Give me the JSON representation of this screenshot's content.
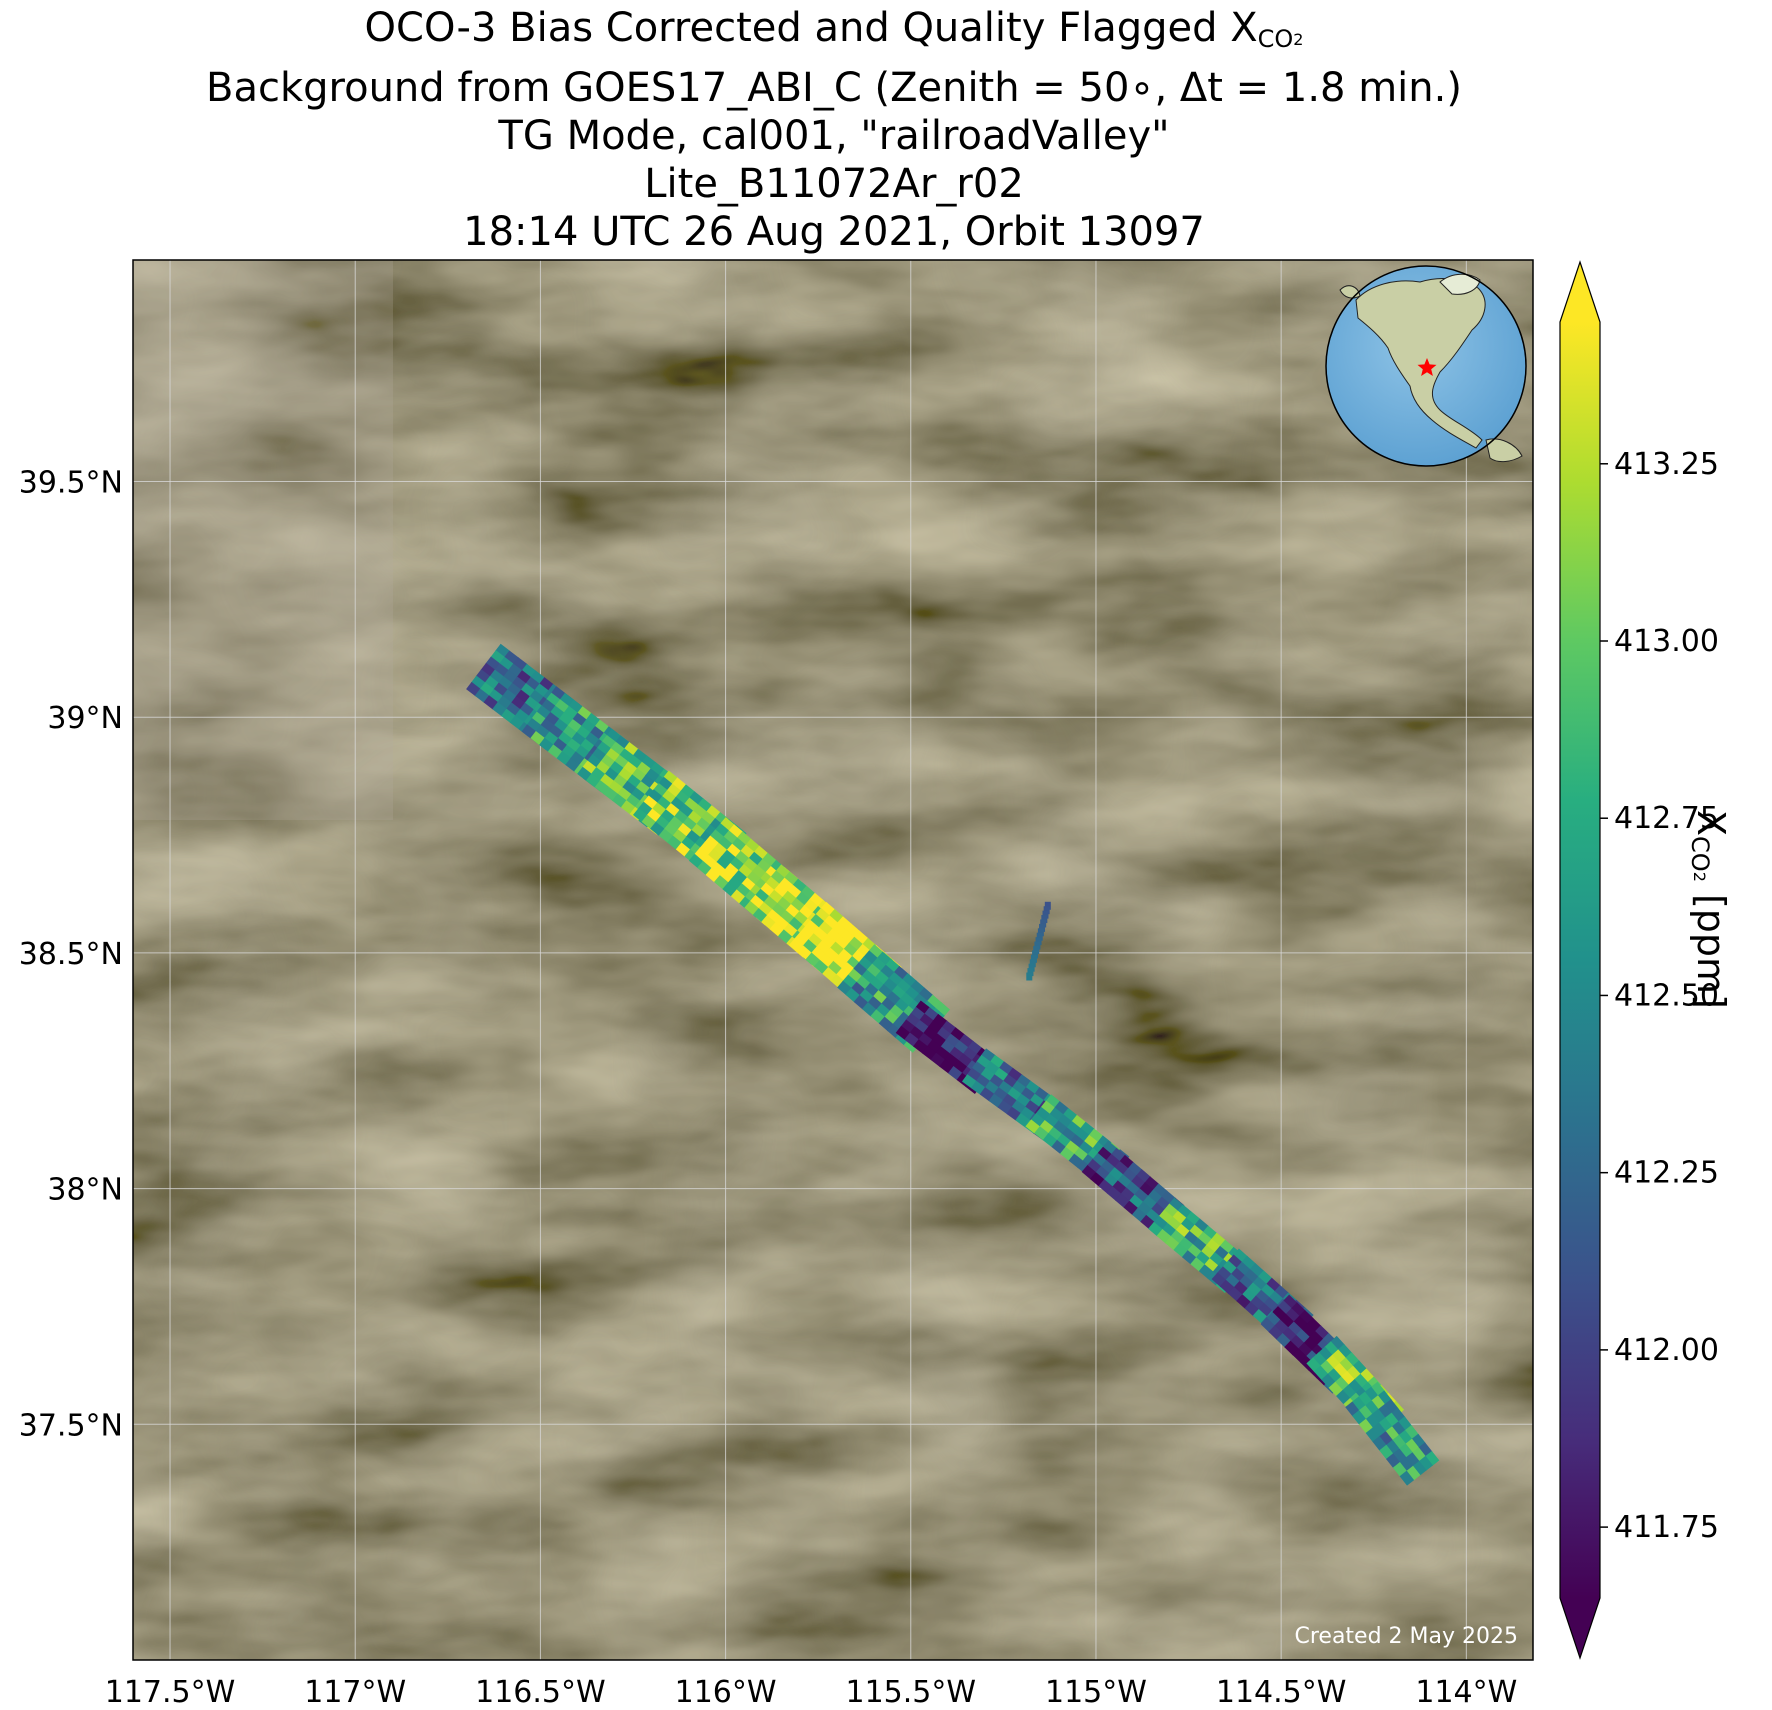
{
  "title": {
    "line1_prefix": "OCO-3 Bias Corrected and Quality Flagged X",
    "line1_sub": "CO",
    "line1_subsub": "2",
    "line2": "Background from GOES17_ABI_C (Zenith = 50∘, Δt =  1.8 min.)",
    "line3": "TG Mode, cal001, \"railroadValley\"",
    "line4": "Lite_B11072Ar_r02",
    "line5": "18:14 UTC 26 Aug 2021, Orbit 13097"
  },
  "credit": "Created 2 May 2025",
  "colorbar": {
    "label_prefix": "X",
    "label_sub": "CO",
    "label_subsub": "2",
    "label_suffix": " [ppm]",
    "colormap": "viridis",
    "vmin": 411.65,
    "vmax": 413.45,
    "extend": "both",
    "ticks": [
      413.25,
      413.0,
      412.75,
      412.5,
      412.25,
      412.0,
      411.75
    ],
    "tick_labels": [
      "413.25",
      "413.00",
      "412.75",
      "412.50",
      "412.25",
      "412.00",
      "411.75"
    ]
  },
  "inset_globe": {
    "description": "",
    "marker_color": "#ff0000"
  },
  "chart_data": {
    "type": "heatmap",
    "map_extent": {
      "lon": [
        -117.6,
        -113.82
      ],
      "lat": [
        37.0,
        39.97
      ]
    },
    "grid": true,
    "x_ticks": [
      -117.5,
      -117.0,
      -116.5,
      -116.0,
      -115.5,
      -115.0,
      -114.5,
      -114.0
    ],
    "x_tick_labels": [
      "117.5°W",
      "117°W",
      "116.5°W",
      "116°W",
      "115.5°W",
      "115°W",
      "114.5°W",
      "114°W"
    ],
    "y_ticks": [
      39.5,
      39.0,
      38.5,
      38.0,
      37.5
    ],
    "y_tick_labels": [
      "39.5°N",
      "39°N",
      "38.5°N",
      "38°N",
      "37.5°N"
    ],
    "swath_segments": [
      {
        "lon": -116.55,
        "lat": 39.04,
        "value": 412.3
      },
      {
        "lon": -116.4,
        "lat": 38.95,
        "value": 412.6
      },
      {
        "lon": -116.25,
        "lat": 38.86,
        "value": 412.9
      },
      {
        "lon": -116.1,
        "lat": 38.77,
        "value": 413.0
      },
      {
        "lon": -115.95,
        "lat": 38.67,
        "value": 413.2
      },
      {
        "lon": -115.8,
        "lat": 38.57,
        "value": 413.3
      },
      {
        "lon": -115.68,
        "lat": 38.49,
        "value": 413.4
      },
      {
        "lon": -115.55,
        "lat": 38.4,
        "value": 412.6
      },
      {
        "lon": -115.4,
        "lat": 38.3,
        "value": 411.7
      },
      {
        "lon": -115.22,
        "lat": 38.2,
        "value": 412.3
      },
      {
        "lon": -115.05,
        "lat": 38.1,
        "value": 412.7
      },
      {
        "lon": -114.9,
        "lat": 38.0,
        "value": 412.1
      },
      {
        "lon": -114.72,
        "lat": 37.88,
        "value": 412.8
      },
      {
        "lon": -114.55,
        "lat": 37.77,
        "value": 412.2
      },
      {
        "lon": -114.42,
        "lat": 37.67,
        "value": 411.8
      },
      {
        "lon": -114.3,
        "lat": 37.58,
        "value": 412.9
      },
      {
        "lon": -114.2,
        "lat": 37.48,
        "value": 412.6
      }
    ],
    "branch_segment": [
      {
        "lon": -115.13,
        "lat": 38.6,
        "value": 412.1
      },
      {
        "lon": -115.18,
        "lat": 38.45,
        "value": 412.4
      }
    ]
  }
}
